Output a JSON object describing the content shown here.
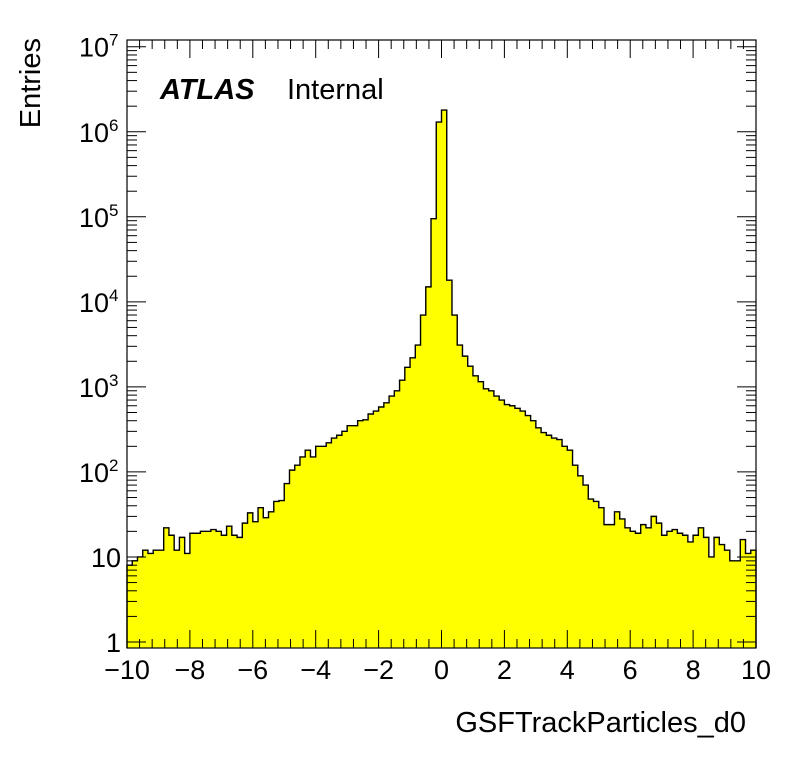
{
  "chart_data": {
    "type": "histogram",
    "ylabel": "Entries",
    "xlabel": "GSFTrackParticles_d0",
    "label_bold": "ATLAS",
    "label_normal": "Internal",
    "fill_color": "#ffff00",
    "line_color": "#000000",
    "xlim": [
      -10,
      10
    ],
    "ylim": [
      0.85,
      12000000
    ],
    "y_scale": "log",
    "x_ticks": [
      "−10",
      "−8",
      "−6",
      "−4",
      "−2",
      "0",
      "2",
      "4",
      "6",
      "8",
      "10"
    ],
    "x_tick_values": [
      -10,
      -8,
      -6,
      -4,
      -2,
      0,
      2,
      4,
      6,
      8,
      10
    ],
    "y_ticks": [
      {
        "value": 1,
        "base": "1",
        "exp": ""
      },
      {
        "value": 10,
        "base": "10",
        "exp": ""
      },
      {
        "value": 100,
        "base": "10",
        "exp": "2"
      },
      {
        "value": 1000,
        "base": "10",
        "exp": "3"
      },
      {
        "value": 10000,
        "base": "10",
        "exp": "4"
      },
      {
        "value": 100000,
        "base": "10",
        "exp": "5"
      },
      {
        "value": 1000000,
        "base": "10",
        "exp": "6"
      },
      {
        "value": 10000000,
        "base": "10",
        "exp": "7"
      }
    ],
    "bin_edges": [
      -10,
      10
    ],
    "n_bins": 120,
    "values": [
      8,
      9,
      10,
      12,
      11,
      12,
      12,
      22,
      18,
      12,
      17,
      11,
      19,
      19,
      20,
      20,
      21,
      20,
      18,
      23,
      18,
      17,
      25,
      33,
      26,
      38,
      29,
      34,
      45,
      46,
      73,
      105,
      120,
      150,
      180,
      150,
      200,
      200,
      220,
      250,
      270,
      300,
      350,
      350,
      400,
      410,
      480,
      520,
      580,
      650,
      780,
      900,
      1200,
      1700,
      2200,
      3100,
      7000,
      15000,
      95000,
      1300000,
      1800000,
      18000,
      7000,
      3100,
      2300,
      1750,
      1350,
      1150,
      950,
      900,
      780,
      700,
      620,
      600,
      560,
      520,
      460,
      400,
      330,
      290,
      270,
      250,
      240,
      200,
      180,
      120,
      90,
      70,
      48,
      45,
      38,
      24,
      24,
      34,
      28,
      22,
      20,
      19,
      24,
      22,
      30,
      25,
      18,
      20,
      21,
      19,
      18,
      15,
      18,
      22,
      17,
      10,
      17,
      14,
      12,
      9,
      9,
      16,
      11,
      12
    ]
  }
}
